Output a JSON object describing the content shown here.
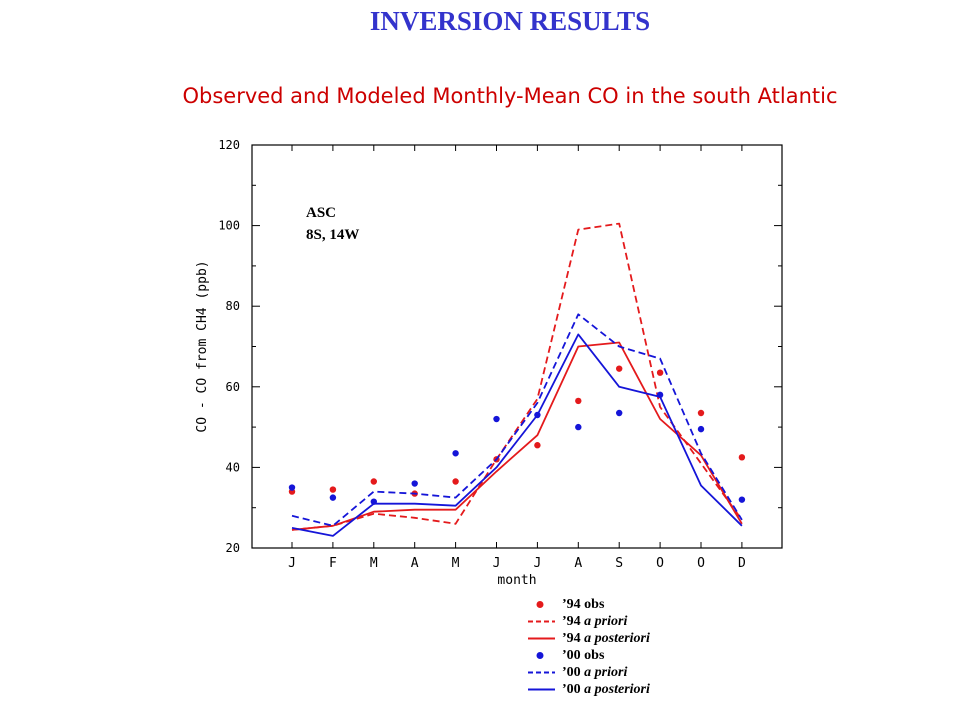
{
  "page": {
    "title": "INVERSION RESULTS",
    "subtitle": "Observed and Modeled Monthly-Mean CO in the south Atlantic"
  },
  "chart_data": {
    "type": "line",
    "xlabel": "month",
    "ylabel": "CO - CO from CH4 (ppb)",
    "categories": [
      "J",
      "F",
      "M",
      "A",
      "M",
      "J",
      "J",
      "A",
      "S",
      "O",
      "O",
      "D"
    ],
    "ylim": [
      20,
      120
    ],
    "yticks": [
      20,
      40,
      60,
      80,
      100,
      120
    ],
    "annotation": [
      "ASC",
      "8S, 14W"
    ],
    "grid": false,
    "legend_position": "bottom",
    "series": [
      {
        "name": "’94 obs",
        "prefix": "’94",
        "qualifier": "obs",
        "italic": false,
        "kind": "points",
        "color": "#e41a1c",
        "values": [
          34,
          34.5,
          36.5,
          33.5,
          36.5,
          42,
          45.5,
          56.5,
          64.5,
          63.5,
          53.5,
          42.5
        ]
      },
      {
        "name": "’94 a priori",
        "prefix": "’94",
        "qualifier": "a priori",
        "italic": true,
        "kind": "dashed",
        "color": "#e41a1c",
        "values": [
          24.5,
          25.5,
          28.5,
          27.5,
          26,
          42,
          57,
          99,
          100.5,
          55,
          41,
          27
        ]
      },
      {
        "name": "’94 a posteriori",
        "prefix": "’94",
        "qualifier": "a posteriori",
        "italic": true,
        "kind": "solid",
        "color": "#e41a1c",
        "values": [
          24.5,
          25.5,
          29,
          29.5,
          29.5,
          39,
          48,
          70,
          71,
          52,
          43,
          26
        ]
      },
      {
        "name": "’00 obs",
        "prefix": "’00",
        "qualifier": "obs",
        "italic": false,
        "kind": "points",
        "color": "#1515d8",
        "values": [
          35,
          32.5,
          31.5,
          36,
          43.5,
          52,
          53,
          50,
          53.5,
          58,
          49.5,
          32
        ]
      },
      {
        "name": "’00 a priori",
        "prefix": "’00",
        "qualifier": "a priori",
        "italic": true,
        "kind": "dashed",
        "color": "#1515d8",
        "values": [
          28,
          25.5,
          34,
          33.5,
          32.5,
          42,
          56,
          78,
          70,
          67,
          43.5,
          27
        ]
      },
      {
        "name": "’00 a posteriori",
        "prefix": "’00",
        "qualifier": "a posteriori",
        "italic": true,
        "kind": "solid",
        "color": "#1515d8",
        "values": [
          25,
          23,
          31,
          31,
          30.5,
          40,
          53,
          73,
          60,
          57.5,
          35.5,
          25.5
        ]
      }
    ]
  }
}
